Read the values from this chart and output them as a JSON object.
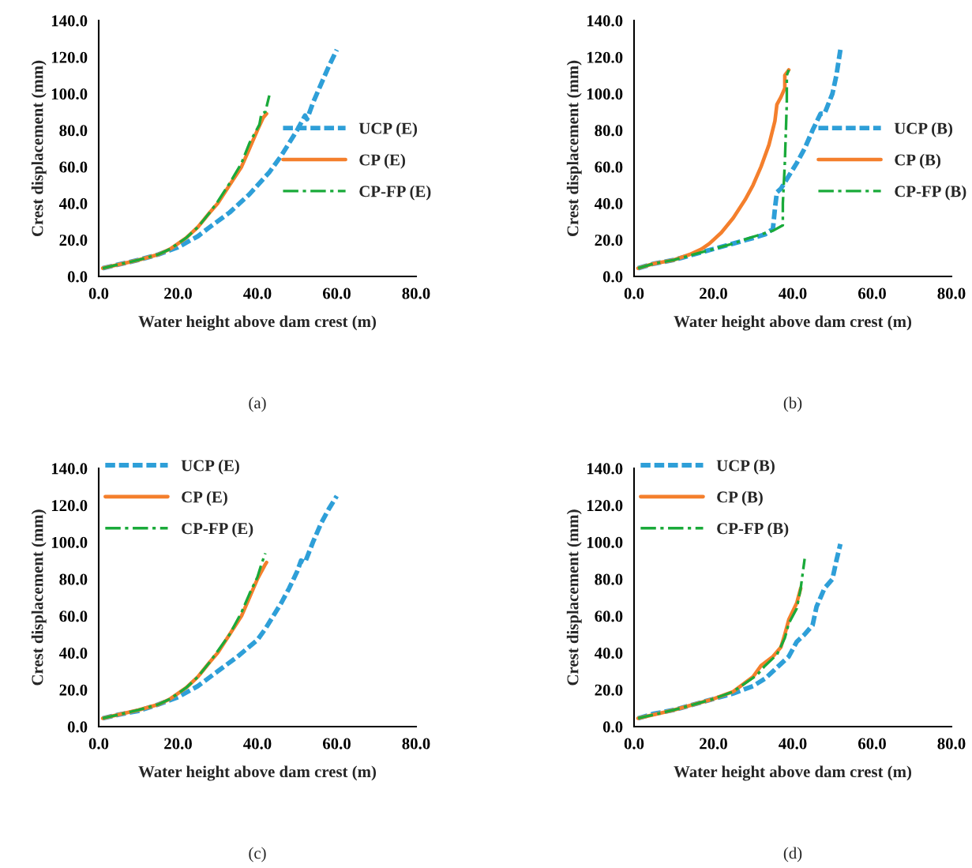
{
  "chart_data": [
    {
      "type": "line",
      "title": "(a)",
      "xlabel": "Water height above dam crest (m)",
      "ylabel": "Crest displacement (mm)",
      "xlim": [
        0,
        80
      ],
      "ylim": [
        0,
        140
      ],
      "xticks": [
        {
          "value": 0,
          "label": "0.0"
        },
        {
          "value": 20,
          "label": "20.0"
        },
        {
          "value": 40,
          "label": "40.0"
        },
        {
          "value": 60,
          "label": "60.0"
        },
        {
          "value": 80,
          "label": "80.0"
        }
      ],
      "yticks": [
        {
          "value": 0,
          "label": "0.0"
        },
        {
          "value": 20,
          "label": "20.0"
        },
        {
          "value": 40,
          "label": "40.0"
        },
        {
          "value": 60,
          "label": "60.0"
        },
        {
          "value": 80,
          "label": "80.0"
        },
        {
          "value": 100,
          "label": "100.0"
        },
        {
          "value": 120,
          "label": "120.0"
        },
        {
          "value": 140,
          "label": "140.0"
        }
      ],
      "grid": false,
      "legend": "right",
      "marker": "none",
      "series": [
        {
          "name": "UCP (E)",
          "color": "#2e9fd8",
          "line_style": "dashed",
          "x": [
            1,
            5,
            10,
            15,
            20,
            25,
            28,
            33,
            38,
            43,
            46,
            50,
            52,
            52.5,
            54,
            56,
            58,
            60
          ],
          "values": [
            4.5,
            6.5,
            9,
            12,
            16,
            22,
            27,
            35,
            45,
            57,
            66,
            80,
            88,
            86,
            95,
            105,
            115,
            124
          ]
        },
        {
          "name": "CP (E)",
          "color": "#f47f2c",
          "line_style": "solid",
          "x": [
            1,
            5,
            10,
            15,
            18,
            20,
            22,
            25,
            28,
            30,
            33,
            36,
            38,
            40,
            41.5,
            42.3
          ],
          "values": [
            4.5,
            6.5,
            9,
            12,
            15,
            18,
            21,
            27,
            35,
            40,
            50,
            60,
            70,
            80,
            87,
            89
          ]
        },
        {
          "name": "CP-FP (E)",
          "color": "#1aaa3a",
          "line_style": "dashdot",
          "x": [
            1,
            5,
            10,
            15,
            18,
            20,
            22,
            25,
            28,
            30,
            33,
            36,
            38,
            40.5,
            41,
            42,
            43
          ],
          "values": [
            4.5,
            6.5,
            9,
            12,
            15,
            18,
            21,
            27,
            35,
            41,
            51,
            62,
            73,
            83,
            89,
            90,
            99
          ]
        }
      ]
    },
    {
      "type": "line",
      "title": "(b)",
      "xlabel": "Water height above dam crest (m)",
      "ylabel": "Crest displacement (mm)",
      "xlim": [
        0,
        80
      ],
      "ylim": [
        0,
        140
      ],
      "xticks": [
        {
          "value": 0,
          "label": "0.0"
        },
        {
          "value": 20,
          "label": "20.0"
        },
        {
          "value": 40,
          "label": "40.0"
        },
        {
          "value": 60,
          "label": "60.0"
        },
        {
          "value": 80,
          "label": "80.0"
        }
      ],
      "yticks": [
        {
          "value": 0,
          "label": "0.0"
        },
        {
          "value": 20,
          "label": "20.0"
        },
        {
          "value": 40,
          "label": "40.0"
        },
        {
          "value": 60,
          "label": "60.0"
        },
        {
          "value": 80,
          "label": "80.0"
        },
        {
          "value": 100,
          "label": "100.0"
        },
        {
          "value": 120,
          "label": "120.0"
        },
        {
          "value": 140,
          "label": "140.0"
        }
      ],
      "grid": false,
      "legend": "right",
      "marker": "none",
      "series": [
        {
          "name": "UCP (B)",
          "color": "#2e9fd8",
          "line_style": "dashed",
          "x": [
            1,
            5,
            10,
            15,
            20,
            25,
            30,
            33,
            35,
            35.5,
            36,
            37,
            39,
            41,
            43,
            45,
            47,
            48,
            50,
            51,
            52
          ],
          "values": [
            4.5,
            7,
            9,
            12,
            15,
            18,
            21,
            23,
            26,
            37,
            46,
            48,
            55,
            62,
            70,
            80,
            89,
            89,
            100,
            110,
            124
          ]
        },
        {
          "name": "CP (B)",
          "color": "#f47f2c",
          "line_style": "solid",
          "x": [
            1,
            5,
            10,
            14,
            17,
            19,
            22,
            25,
            28,
            30,
            32,
            34,
            35.5,
            36,
            37,
            38,
            38,
            39
          ],
          "values": [
            4.5,
            7,
            9,
            12,
            15,
            18,
            24,
            32,
            42,
            50,
            60,
            72,
            85,
            94,
            98,
            103,
            110,
            113
          ]
        },
        {
          "name": "CP-FP (B)",
          "color": "#1aaa3a",
          "line_style": "dashdot",
          "x": [
            1,
            5,
            10,
            15,
            20,
            25,
            29,
            32,
            35,
            37.5,
            37.5,
            38,
            38.5,
            38.5,
            39
          ],
          "values": [
            4.5,
            7,
            9,
            12,
            15,
            18,
            21,
            23,
            25,
            28,
            40,
            62,
            95,
            110,
            113
          ]
        }
      ]
    },
    {
      "type": "line",
      "title": "(c)",
      "xlabel": "Water height above dam crest (m)",
      "ylabel": "Crest displacement (mm)",
      "xlim": [
        0,
        80
      ],
      "ylim": [
        0,
        140
      ],
      "xticks": [
        {
          "value": 0,
          "label": "0.0"
        },
        {
          "value": 20,
          "label": "20.0"
        },
        {
          "value": 40,
          "label": "40.0"
        },
        {
          "value": 60,
          "label": "60.0"
        },
        {
          "value": 80,
          "label": "80.0"
        }
      ],
      "yticks": [
        {
          "value": 0,
          "label": "0.0"
        },
        {
          "value": 20,
          "label": "20.0"
        },
        {
          "value": 40,
          "label": "40.0"
        },
        {
          "value": 60,
          "label": "60.0"
        },
        {
          "value": 80,
          "label": "80.0"
        },
        {
          "value": 100,
          "label": "100.0"
        },
        {
          "value": 120,
          "label": "120.0"
        },
        {
          "value": 140,
          "label": "140.0"
        }
      ],
      "grid": false,
      "legend": "top left",
      "marker": "none",
      "series": [
        {
          "name": "UCP (E)",
          "color": "#2e9fd8",
          "line_style": "dashed",
          "x": [
            1,
            5,
            10,
            15,
            20,
            25,
            30,
            35,
            40,
            42,
            44,
            46,
            48,
            50,
            51,
            52,
            54,
            56,
            58,
            60
          ],
          "values": [
            4.5,
            6.5,
            8.5,
            12,
            16,
            22,
            30,
            38,
            47,
            53,
            60,
            67,
            75,
            84,
            90,
            89,
            100,
            110,
            118,
            125
          ]
        },
        {
          "name": "CP (E)",
          "color": "#f47f2c",
          "line_style": "solid",
          "x": [
            1,
            5,
            10,
            15,
            18,
            20,
            22,
            25,
            28,
            30,
            33,
            36,
            38,
            40,
            42,
            42.3
          ],
          "values": [
            4.5,
            6.5,
            9,
            12,
            15,
            18,
            21,
            27,
            35,
            40,
            50,
            60,
            70,
            80,
            88,
            89
          ]
        },
        {
          "name": "CP-FP (E)",
          "color": "#1aaa3a",
          "line_style": "dashdot",
          "x": [
            1,
            5,
            10,
            15,
            18,
            20,
            22,
            25,
            28,
            30,
            33,
            36,
            38,
            40,
            41,
            42
          ],
          "values": [
            4.5,
            6.5,
            9,
            12,
            15,
            18,
            21,
            27,
            35,
            41,
            50,
            62,
            72,
            81,
            88,
            94
          ]
        }
      ]
    },
    {
      "type": "line",
      "title": "(d)",
      "xlabel": "Water height above dam crest (m)",
      "ylabel": "Crest displacement (mm)",
      "xlim": [
        0,
        80
      ],
      "ylim": [
        0,
        140
      ],
      "xticks": [
        {
          "value": 0,
          "label": "0.0"
        },
        {
          "value": 20,
          "label": "20.0"
        },
        {
          "value": 40,
          "label": "40.0"
        },
        {
          "value": 60,
          "label": "60.0"
        },
        {
          "value": 80,
          "label": "80.0"
        }
      ],
      "yticks": [
        {
          "value": 0,
          "label": "0.0"
        },
        {
          "value": 20,
          "label": "20.0"
        },
        {
          "value": 40,
          "label": "40.0"
        },
        {
          "value": 60,
          "label": "60.0"
        },
        {
          "value": 80,
          "label": "80.0"
        },
        {
          "value": 100,
          "label": "100.0"
        },
        {
          "value": 120,
          "label": "120.0"
        },
        {
          "value": 140,
          "label": "140.0"
        }
      ],
      "grid": false,
      "legend": "top left",
      "marker": "none",
      "series": [
        {
          "name": "UCP (B)",
          "color": "#2e9fd8",
          "line_style": "dashed",
          "x": [
            1,
            5,
            10,
            15,
            20,
            25,
            30,
            33,
            36,
            39,
            41,
            43,
            45,
            46,
            48,
            50,
            51,
            52
          ],
          "values": [
            4.5,
            7,
            9,
            12,
            15,
            18,
            22,
            26,
            32,
            38,
            46,
            50,
            55,
            65,
            75,
            80,
            90,
            99
          ]
        },
        {
          "name": "CP (B)",
          "color": "#f47f2c",
          "line_style": "solid",
          "x": [
            1,
            10,
            20,
            25,
            30,
            32,
            35,
            37,
            38,
            39,
            41,
            42
          ],
          "values": [
            4.5,
            9,
            15,
            19,
            27,
            33,
            38,
            43,
            50,
            58,
            67,
            75
          ]
        },
        {
          "name": "CP-FP (B)",
          "color": "#1aaa3a",
          "line_style": "dashdot",
          "x": [
            1,
            10,
            20,
            25,
            29,
            31,
            33,
            36,
            38,
            39,
            41,
            42,
            42.5,
            43
          ],
          "values": [
            4.5,
            9,
            15,
            19,
            25,
            28,
            33,
            39,
            48,
            56,
            64,
            75,
            83,
            91
          ]
        }
      ]
    }
  ]
}
